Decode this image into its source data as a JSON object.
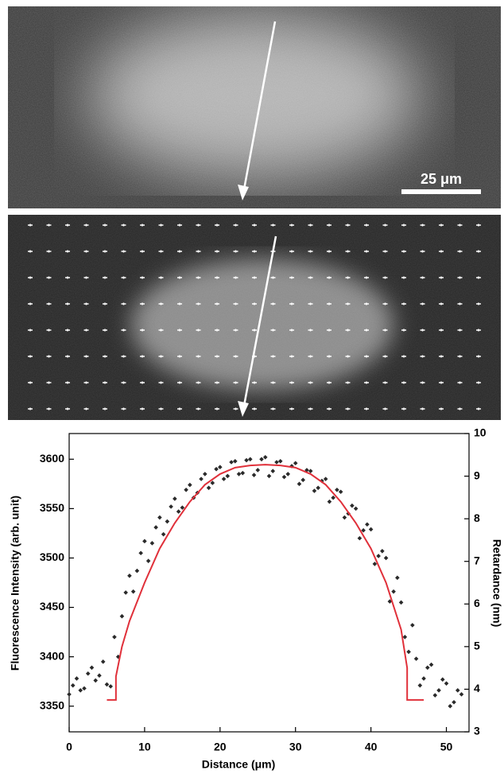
{
  "chart_data": {
    "type": "scatter",
    "xlabel": "Distance (μm)",
    "ylabel": "Fluorescence  Intensity  (arb.  unit)",
    "y2label": "Retardance  (nm)",
    "annotations": [
      "25  μm"
    ],
    "xlim": [
      0,
      53
    ],
    "xticks": [
      0,
      10,
      20,
      30,
      40,
      50
    ],
    "ylim": [
      3324,
      3626
    ],
    "yticks": [
      3350,
      3400,
      3450,
      3500,
      3550,
      3600
    ],
    "y2lim": [
      3,
      10
    ],
    "y2ticks": [
      3,
      4,
      5,
      6,
      7,
      8,
      9,
      10
    ],
    "series": [
      {
        "type": "scatter",
        "color": "#2a2a2a",
        "x": [
          0,
          1,
          2,
          3,
          4,
          5,
          6,
          7,
          8,
          9,
          10,
          11,
          12,
          13,
          14,
          15,
          16,
          17,
          18,
          19,
          20,
          21,
          22,
          23,
          24,
          25,
          26,
          27,
          28,
          29,
          30,
          31,
          32,
          33,
          34,
          35,
          36,
          37,
          38,
          39,
          40,
          41,
          42,
          43,
          44,
          45,
          46,
          47,
          48,
          49,
          50,
          51,
          52,
          0.5,
          1.5,
          2.5,
          3.5,
          4.5,
          5.5,
          6.5,
          7.5,
          8.5,
          9.5,
          10.5,
          11.5,
          12.5,
          13.5,
          14.5,
          15.5,
          16.5,
          17.5,
          18.5,
          19.5,
          20.5,
          21.5,
          22.5,
          23.5,
          24.5,
          25.5,
          26.5,
          27.5,
          28.5,
          29.5,
          30.5,
          31.5,
          32.5,
          33.5,
          34.5,
          35.5,
          36.5,
          37.5,
          38.5,
          39.5,
          40.5,
          41.5,
          42.5,
          43.5,
          44.5,
          45.5,
          46.5,
          47.5,
          48.5,
          49.5,
          50.5,
          51.5
        ],
        "values": [
          3362,
          3378,
          3368,
          3389,
          3381,
          3372,
          3420,
          3441,
          3482,
          3487,
          3517,
          3515,
          3541,
          3537,
          3560,
          3551,
          3574,
          3566,
          3585,
          3576,
          3592,
          3583,
          3598,
          3586,
          3600,
          3589,
          3602,
          3588,
          3598,
          3585,
          3596,
          3579,
          3588,
          3571,
          3580,
          3561,
          3567,
          3545,
          3550,
          3528,
          3529,
          3502,
          3500,
          3466,
          3455,
          3405,
          3398,
          3378,
          3392,
          3366,
          3373,
          3354,
          3362,
          3371,
          3366,
          3383,
          3376,
          3395,
          3370,
          3400,
          3465,
          3466,
          3505,
          3497,
          3531,
          3524,
          3552,
          3547,
          3569,
          3561,
          3580,
          3571,
          3590,
          3580,
          3597,
          3585,
          3599,
          3584,
          3600,
          3583,
          3597,
          3582,
          3593,
          3575,
          3589,
          3568,
          3578,
          3557,
          3569,
          3541,
          3553,
          3520,
          3534,
          3494,
          3507,
          3456,
          3480,
          3420,
          3432,
          3371,
          3389,
          3361,
          3377,
          3350,
          3366
        ]
      },
      {
        "type": "line",
        "axis": "y2",
        "color": "#e0303a",
        "x": [
          5,
          6.2,
          6.2,
          7,
          8,
          10,
          12,
          14,
          16,
          18,
          20,
          22,
          24,
          26,
          28,
          30,
          32,
          34,
          36,
          38,
          40,
          42,
          44,
          44.8,
          44.8,
          47
        ],
        "values": [
          3.75,
          3.75,
          4.3,
          5.0,
          5.6,
          6.5,
          7.3,
          7.9,
          8.4,
          8.8,
          9.05,
          9.2,
          9.25,
          9.27,
          9.25,
          9.2,
          9.05,
          8.8,
          8.4,
          7.9,
          7.3,
          6.5,
          5.4,
          4.5,
          3.75,
          3.75
        ]
      }
    ]
  }
}
